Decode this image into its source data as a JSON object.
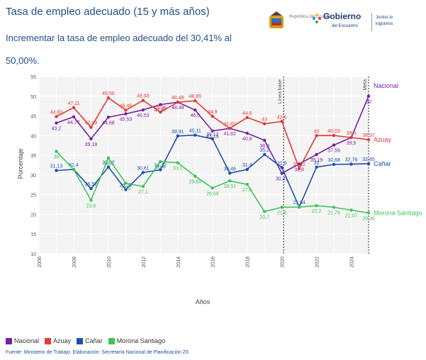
{
  "header": {
    "title": "Tasa de empleo adecuado (15 y más años)",
    "subtitle": "Incrementar la tasa de empleo adecuado del 30,41% al 50,00%."
  },
  "logos": {
    "republica": "República del Ecuador",
    "gobierno": "Gobierno",
    "gobierno_sub": "del Encuentro",
    "tagline": "Juntos lo logramos"
  },
  "legend": {
    "nacional": "Nacional",
    "azuay": "Azuay",
    "canar": "Cañar",
    "morona": "Morona Santiago"
  },
  "source": "Fuente: Ministerio de Trabajo. Elaboración: Secretaría Nacional de Planificación Z6",
  "chart_data": {
    "type": "line",
    "xlabel": "Años",
    "ylabel": "Porcentaje",
    "xlim": [
      2006,
      2025
    ],
    "ylim": [
      10,
      55
    ],
    "x_ticks": [
      "2006",
      "2008",
      "2010",
      "2012",
      "2014",
      "2016",
      "2018",
      "2020",
      "2022",
      "2024"
    ],
    "y_ticks": [
      "10",
      "15",
      "20",
      "25",
      "30",
      "35",
      "40",
      "45",
      "50",
      "55"
    ],
    "grid": true,
    "legend_position": "bottom",
    "annotations": [
      {
        "x": 2020.1,
        "text": "Línea base"
      },
      {
        "x": 2025.0,
        "text": "Meta"
      }
    ],
    "series": [
      {
        "name": "Nacional",
        "color": "#7b1fa2",
        "x": [
          2007,
          2008,
          2009,
          2010,
          2011,
          2012,
          2013,
          2014,
          2015,
          2016,
          2017,
          2018,
          2019,
          2020,
          2021,
          2022,
          2023,
          2024,
          2025
        ],
        "y": [
          43.2,
          44.77,
          39.18,
          44.68,
          45.53,
          46.53,
          47.87,
          48.48,
          46.5,
          41.19,
          41.82,
          40.6,
          38.8,
          30.41,
          32.8,
          35.19,
          37.59,
          39.5,
          50
        ],
        "labels": [
          "43,2",
          "44,77",
          "39,18",
          "44,68",
          "45,53",
          "46,53",
          "47,87",
          "48,48",
          "46,5",
          "41,19",
          "41,82",
          "40,6",
          "38,8",
          "30,41",
          "32,8",
          "35,19",
          "37,59",
          "39,5",
          "50"
        ],
        "end_label": "Nacional"
      },
      {
        "name": "Azuay",
        "color": "#e53935",
        "x": [
          2007,
          2008,
          2009,
          2010,
          2011,
          2012,
          2013,
          2014,
          2015,
          2016,
          2017,
          2018,
          2019,
          2020,
          2021,
          2022,
          2023,
          2024,
          2025
        ],
        "y": [
          44.83,
          47.11,
          42.09,
          49.59,
          46.46,
          48.93,
          45.96,
          48.48,
          48.85,
          44.9,
          41.82,
          44.6,
          43,
          43.6,
          31.61,
          40,
          40.03,
          39.5,
          38.97
        ],
        "labels": [
          "44,83",
          "47,11",
          "42,09",
          "49,59",
          "46,46",
          "48,93",
          "45,96",
          "48,48",
          "48,85",
          "44,9",
          "41,82",
          "44,6",
          "43",
          "43,6",
          "31,61",
          "40",
          "40,03",
          "39,5",
          "38,97"
        ],
        "end_label": "Azuay"
      },
      {
        "name": "Cañar",
        "color": "#1e4fb0",
        "x": [
          2007,
          2008,
          2009,
          2010,
          2011,
          2012,
          2013,
          2014,
          2015,
          2016,
          2017,
          2018,
          2019,
          2020,
          2021,
          2022,
          2023,
          2024,
          2025
        ],
        "y": [
          31.13,
          31.4,
          26.52,
          32.02,
          26.28,
          30.61,
          31.32,
          39.91,
          40.11,
          39.17,
          30.46,
          31.4,
          35.2,
          31.9,
          21.84,
          32,
          32.68,
          32.76,
          32.85
        ],
        "labels": [
          "31,13",
          "31,4",
          "26,52",
          "32,02",
          "26,28",
          "30,61",
          "31,32",
          "39,91",
          "40,11",
          "39,17",
          "30,46",
          "31,4",
          "35,2",
          "31,9",
          "21,84",
          "32",
          "32,68",
          "32,76",
          "32,85"
        ],
        "end_label": "Cañar"
      },
      {
        "name": "Morona Santiago",
        "color": "#3ec45a",
        "x": [
          2007,
          2008,
          2009,
          2010,
          2011,
          2012,
          2013,
          2014,
          2015,
          2016,
          2017,
          2018,
          2019,
          2020,
          2021,
          2022,
          2023,
          2024,
          2025
        ],
        "y": [
          36,
          31.4,
          23.6,
          34.3,
          27.9,
          27.1,
          33.4,
          33.1,
          29.69,
          26.69,
          28.51,
          27.6,
          20.7,
          21.8,
          21.84,
          22.2,
          21.79,
          21.07,
          20.36
        ],
        "labels": [
          "36",
          "",
          "23,6",
          "34,3",
          "27,9",
          "27,1",
          "33,4",
          "33,1",
          "29,69",
          "26,69",
          "28,51",
          "27,6",
          "20,7",
          "21,8",
          "",
          "22,2",
          "21,79",
          "21,07",
          "20,36"
        ],
        "end_label": "Morona Santiago"
      }
    ]
  }
}
